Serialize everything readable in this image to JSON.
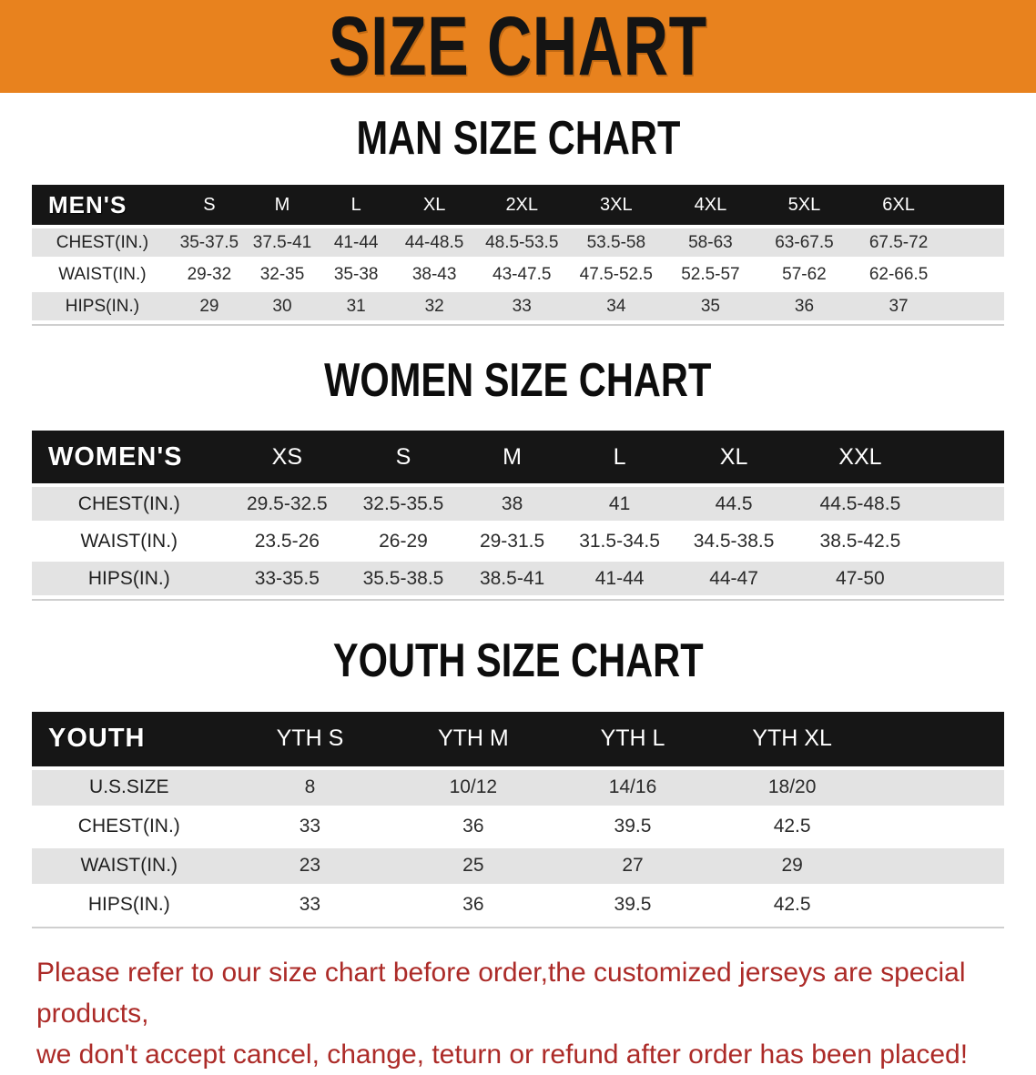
{
  "banner": {
    "title": "SIZE CHART"
  },
  "tables": {
    "men": {
      "title": "MAN SIZE CHART",
      "header_label": "MEN'S",
      "columns": [
        "S",
        "M",
        "L",
        "XL",
        "2XL",
        "3XL",
        "4XL",
        "5XL",
        "6XL"
      ],
      "rows": [
        {
          "label": "CHEST(IN.)",
          "values": [
            "35-37.5",
            "37.5-41",
            "41-44",
            "44-48.5",
            "48.5-53.5",
            "53.5-58",
            "58-63",
            "63-67.5",
            "67.5-72"
          ]
        },
        {
          "label": "WAIST(IN.)",
          "values": [
            "29-32",
            "32-35",
            "35-38",
            "38-43",
            "43-47.5",
            "47.5-52.5",
            "52.5-57",
            "57-62",
            "62-66.5"
          ]
        },
        {
          "label": "HIPS(IN.)",
          "values": [
            "29",
            "30",
            "31",
            "32",
            "33",
            "34",
            "35",
            "36",
            "37"
          ]
        }
      ]
    },
    "women": {
      "title": "WOMEN SIZE CHART",
      "header_label": "WOMEN'S",
      "columns": [
        "XS",
        "S",
        "M",
        "L",
        "XL",
        "XXL"
      ],
      "rows": [
        {
          "label": "CHEST(IN.)",
          "values": [
            "29.5-32.5",
            "32.5-35.5",
            "38",
            "41",
            "44.5",
            "44.5-48.5"
          ]
        },
        {
          "label": "WAIST(IN.)",
          "values": [
            "23.5-26",
            "26-29",
            "29-31.5",
            "31.5-34.5",
            "34.5-38.5",
            "38.5-42.5"
          ]
        },
        {
          "label": "HIPS(IN.)",
          "values": [
            "33-35.5",
            "35.5-38.5",
            "38.5-41",
            "41-44",
            "44-47",
            "47-50"
          ]
        }
      ]
    },
    "youth": {
      "title": "YOUTH SIZE CHART",
      "header_label": "YOUTH",
      "columns": [
        "YTH S",
        "YTH M",
        "YTH L",
        "YTH XL"
      ],
      "rows": [
        {
          "label": "U.S.SIZE",
          "values": [
            "8",
            "10/12",
            "14/16",
            "18/20"
          ]
        },
        {
          "label": "CHEST(IN.)",
          "values": [
            "33",
            "36",
            "39.5",
            "42.5"
          ]
        },
        {
          "label": "WAIST(IN.)",
          "values": [
            "23",
            "25",
            "27",
            "29"
          ]
        },
        {
          "label": "HIPS(IN.)",
          "values": [
            "33",
            "36",
            "39.5",
            "42.5"
          ]
        }
      ]
    }
  },
  "footer": {
    "line1": "Please refer to our size chart before order,the customized jerseys are special products,",
    "line2": "we don't accept cancel, change, teturn or refund after order has been placed!"
  },
  "colors": {
    "banner_bg": "#E8821E",
    "banner_text": "#141414",
    "header_bar_bg": "#161616",
    "header_bar_text": "#FFFFFF",
    "row_stripe": "#E3E3E3",
    "row_alt": "#FFFFFF",
    "notice_red": "#AC2B28"
  }
}
